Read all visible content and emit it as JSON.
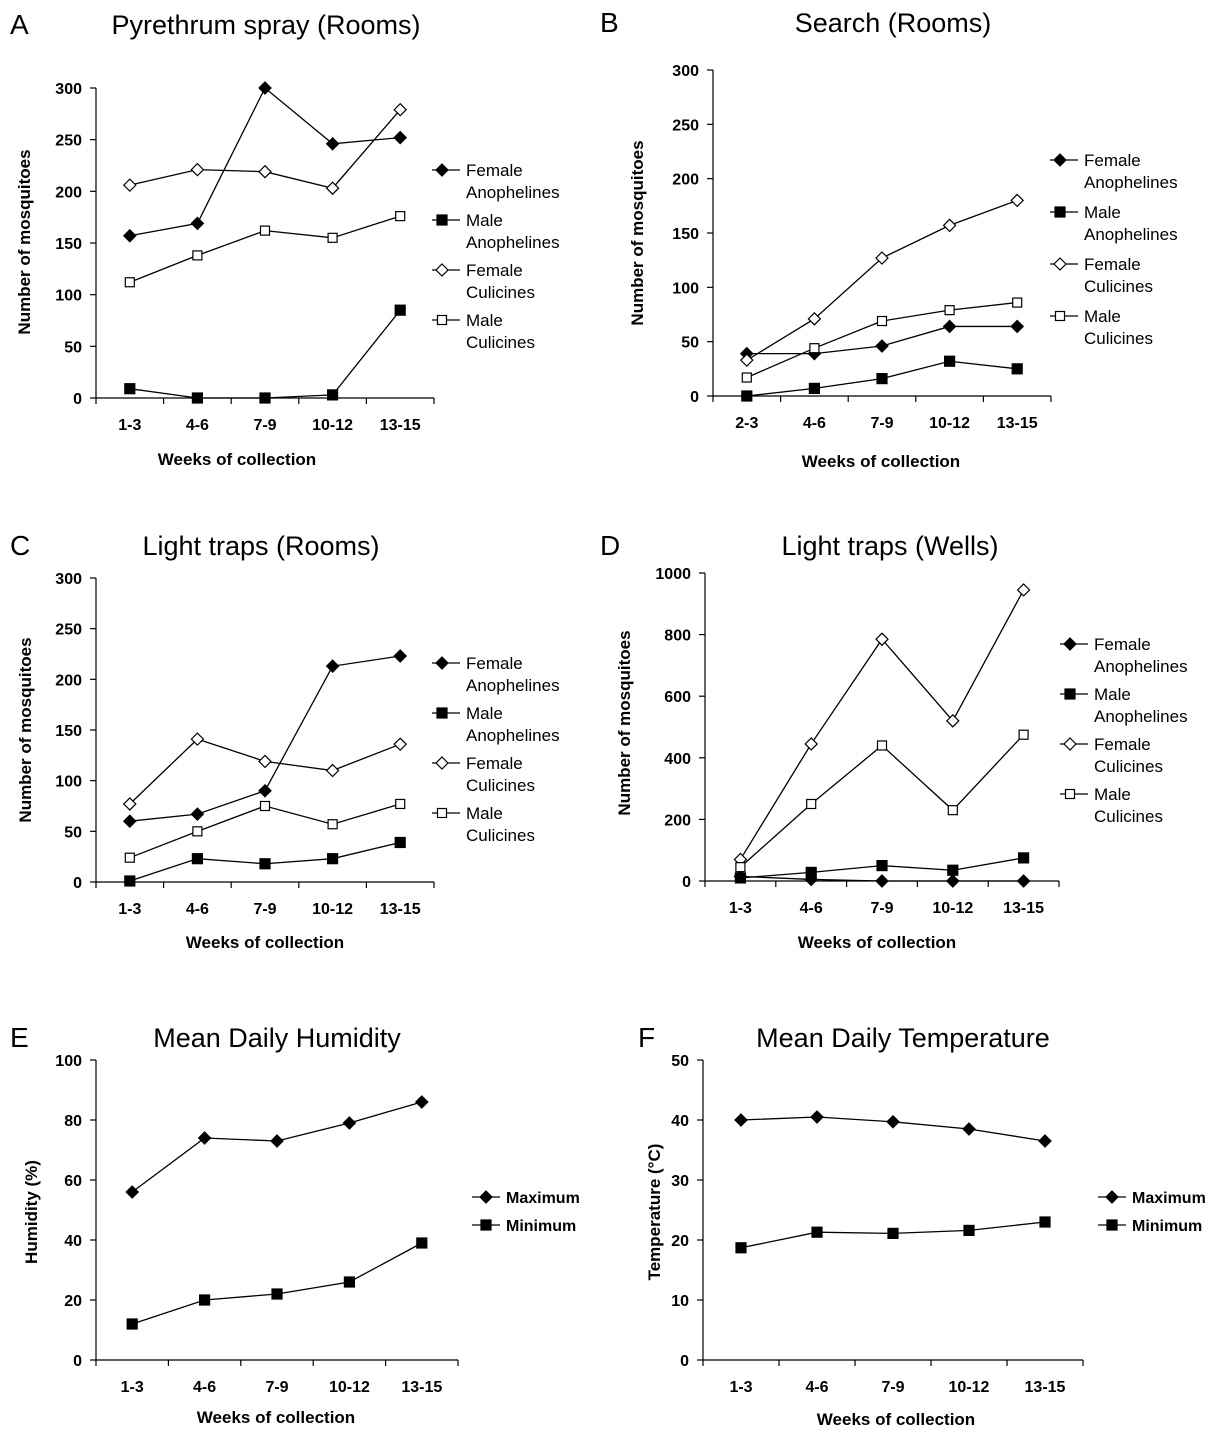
{
  "chart_data": [
    {
      "panel": "A",
      "type": "line",
      "title": "Pyrethrum spray (Rooms)",
      "xlabel": "Weeks of collection",
      "ylabel": "Number of mosquitoes",
      "categories": [
        "1-3",
        "4-6",
        "7-9",
        "10-12",
        "13-15"
      ],
      "ylim": [
        0,
        300
      ],
      "yticks": [
        0,
        50,
        100,
        150,
        200,
        250,
        300
      ],
      "grid": false,
      "legend_position": "right",
      "series": [
        {
          "name": "Female Anophelines",
          "legend_lines": [
            "Female",
            "Anophelines"
          ],
          "marker": "diamond-filled",
          "values": [
            157,
            169,
            300,
            246,
            252
          ]
        },
        {
          "name": "Male Anophelines",
          "legend_lines": [
            "Male",
            "Anophelines"
          ],
          "marker": "square-filled",
          "values": [
            9,
            0,
            0,
            3,
            85
          ]
        },
        {
          "name": "Female Culicines",
          "legend_lines": [
            "Female",
            "Culicines"
          ],
          "marker": "diamond-open",
          "values": [
            206,
            221,
            219,
            203,
            279
          ]
        },
        {
          "name": "Male Culicines",
          "legend_lines": [
            "Male",
            "Culicines"
          ],
          "marker": "square-open",
          "values": [
            112,
            138,
            162,
            155,
            176
          ]
        }
      ]
    },
    {
      "panel": "B",
      "type": "line",
      "title": "Search (Rooms)",
      "xlabel": "Weeks of collection",
      "ylabel": "Number of mosquitoes",
      "categories": [
        "2-3",
        "4-6",
        "7-9",
        "10-12",
        "13-15"
      ],
      "ylim": [
        0,
        300
      ],
      "yticks": [
        0,
        50,
        100,
        150,
        200,
        250,
        300
      ],
      "grid": false,
      "legend_position": "right",
      "series": [
        {
          "name": "Female Anophelines",
          "legend_lines": [
            "Female",
            "Anophelines"
          ],
          "marker": "diamond-filled",
          "values": [
            39,
            39,
            46,
            64,
            64
          ]
        },
        {
          "name": "Male Anophelines",
          "legend_lines": [
            "Male",
            "Anophelines"
          ],
          "marker": "square-filled",
          "values": [
            0,
            7,
            16,
            32,
            25
          ]
        },
        {
          "name": "Female Culicines",
          "legend_lines": [
            "Female",
            "Culicines"
          ],
          "marker": "diamond-open",
          "values": [
            33,
            71,
            127,
            157,
            180
          ]
        },
        {
          "name": "Male Culicines",
          "legend_lines": [
            "Male",
            "Culicines"
          ],
          "marker": "square-open",
          "values": [
            17,
            44,
            69,
            79,
            86
          ]
        }
      ]
    },
    {
      "panel": "C",
      "type": "line",
      "title": "Light traps (Rooms)",
      "xlabel": "Weeks of collection",
      "ylabel": "Number of mosquitoes",
      "categories": [
        "1-3",
        "4-6",
        "7-9",
        "10-12",
        "13-15"
      ],
      "ylim": [
        0,
        300
      ],
      "yticks": [
        0,
        50,
        100,
        150,
        200,
        250,
        300
      ],
      "grid": false,
      "legend_position": "right",
      "series": [
        {
          "name": "Female Anophelines",
          "legend_lines": [
            "Female",
            "Anophelines"
          ],
          "marker": "diamond-filled",
          "values": [
            60,
            67,
            90,
            213,
            223
          ]
        },
        {
          "name": "Male Anophelines",
          "legend_lines": [
            "Male",
            "Anophelines"
          ],
          "marker": "square-filled",
          "values": [
            1,
            23,
            18,
            23,
            39
          ]
        },
        {
          "name": "Female Culicines",
          "legend_lines": [
            "Female",
            "Culicines"
          ],
          "marker": "diamond-open",
          "values": [
            77,
            141,
            119,
            110,
            136
          ]
        },
        {
          "name": "Male Culicines",
          "legend_lines": [
            "Male",
            "Culicines"
          ],
          "marker": "square-open",
          "values": [
            24,
            50,
            75,
            57,
            77
          ]
        }
      ]
    },
    {
      "panel": "D",
      "type": "line",
      "title": "Light traps (Wells)",
      "xlabel": "Weeks of collection",
      "ylabel": "Number of mosquitoes",
      "categories": [
        "1-3",
        "4-6",
        "7-9",
        "10-12",
        "13-15"
      ],
      "ylim": [
        0,
        1000
      ],
      "yticks": [
        0,
        200,
        400,
        600,
        800,
        1000
      ],
      "grid": false,
      "legend_position": "right",
      "series": [
        {
          "name": "Female Anophelines",
          "legend_lines": [
            "Female",
            "Anophelines"
          ],
          "marker": "diamond-filled",
          "values": [
            15,
            5,
            0,
            0,
            0
          ]
        },
        {
          "name": "Male Anophelines",
          "legend_lines": [
            "Male",
            "Anophelines"
          ],
          "marker": "square-filled",
          "values": [
            10,
            28,
            50,
            35,
            75
          ]
        },
        {
          "name": "Female Culicines",
          "legend_lines": [
            "Female",
            "Culicines"
          ],
          "marker": "diamond-open",
          "values": [
            70,
            445,
            785,
            520,
            945
          ]
        },
        {
          "name": "Male Culicines",
          "legend_lines": [
            "Male",
            "Culicines"
          ],
          "marker": "square-open",
          "values": [
            45,
            250,
            440,
            230,
            475
          ]
        }
      ]
    },
    {
      "panel": "E",
      "type": "line",
      "title": "Mean Daily Humidity",
      "xlabel": "Weeks of collection",
      "ylabel": "Humidity (%)",
      "categories": [
        "1-3",
        "4-6",
        "7-9",
        "10-12",
        "13-15"
      ],
      "ylim": [
        0,
        100
      ],
      "yticks": [
        0,
        20,
        40,
        60,
        80,
        100
      ],
      "grid": false,
      "legend_position": "right",
      "series": [
        {
          "name": "Maximum",
          "legend_lines": [
            "Maximum"
          ],
          "marker": "diamond-filled",
          "values": [
            56,
            74,
            73,
            79,
            86
          ]
        },
        {
          "name": "Minimum",
          "legend_lines": [
            "Minimum"
          ],
          "marker": "square-filled",
          "values": [
            12,
            20,
            22,
            26,
            39
          ]
        }
      ]
    },
    {
      "panel": "F",
      "type": "line",
      "title": "Mean Daily Temperature",
      "xlabel": "Weeks of collection",
      "ylabel": "Temperature (°C)",
      "categories": [
        "1-3",
        "4-6",
        "7-9",
        "10-12",
        "13-15"
      ],
      "ylim": [
        0,
        50
      ],
      "yticks": [
        0,
        10,
        20,
        30,
        40,
        50
      ],
      "grid": false,
      "legend_position": "right",
      "series": [
        {
          "name": "Maximum",
          "legend_lines": [
            "Maximum"
          ],
          "marker": "diamond-filled",
          "values": [
            40,
            40.5,
            39.7,
            38.5,
            36.5
          ]
        },
        {
          "name": "Minimum",
          "legend_lines": [
            "Minimum"
          ],
          "marker": "square-filled",
          "values": [
            18.7,
            21.3,
            21.1,
            21.6,
            23
          ]
        }
      ]
    }
  ]
}
